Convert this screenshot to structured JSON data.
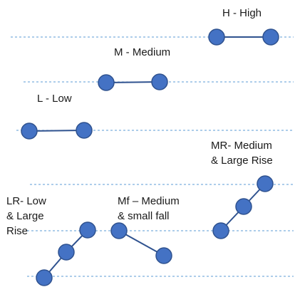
{
  "labels": {
    "high": "H - High",
    "medium": "M - Medium",
    "low": "L - Low",
    "medium_large_rise": [
      "MR- Medium",
      "& Large Rise"
    ],
    "low_large_rise": [
      "LR- Low",
      "& Large",
      "Rise"
    ],
    "medium_small_fall": [
      "Mf – Medium",
      "& small fall"
    ]
  },
  "colors": {
    "guide_line": "#5b9bd5",
    "node_fill": "#4472c4",
    "node_stroke": "#2f528f",
    "connector": "#2f528f"
  },
  "patterns": [
    {
      "id": "high",
      "shape": "flat"
    },
    {
      "id": "medium",
      "shape": "flat"
    },
    {
      "id": "low",
      "shape": "flat"
    },
    {
      "id": "low_large_rise",
      "shape": "three-step rise"
    },
    {
      "id": "medium_small_fall",
      "shape": "two-point fall"
    },
    {
      "id": "medium_large_rise",
      "shape": "three-step rise"
    }
  ]
}
